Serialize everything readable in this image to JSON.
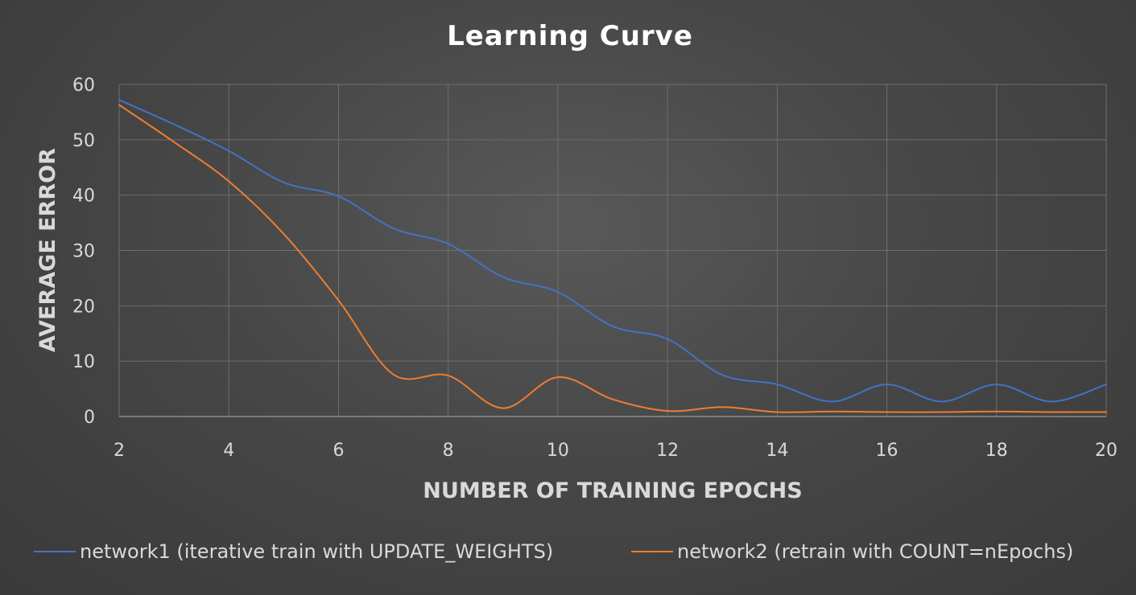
{
  "chart_data": {
    "type": "line",
    "title": "Learning Curve",
    "xlabel": "NUMBER OF TRAINING EPOCHS",
    "ylabel": "AVERAGE ERROR",
    "xlim": [
      2,
      20
    ],
    "ylim": [
      0,
      60
    ],
    "x_ticks": [
      2,
      4,
      6,
      8,
      10,
      12,
      14,
      16,
      18,
      20
    ],
    "y_ticks": [
      0,
      10,
      20,
      30,
      40,
      50,
      60
    ],
    "grid": true,
    "legend_position": "bottom",
    "x": [
      2,
      3,
      4,
      5,
      6,
      7,
      8,
      9,
      10,
      11,
      12,
      13,
      14,
      15,
      16,
      17,
      18,
      19,
      20
    ],
    "series": [
      {
        "name": "network1 (iterative train with UPDATE_WEIGHTS)",
        "color": "#4472c4",
        "values": [
          57.2,
          52.8,
          48.0,
          42.3,
          39.8,
          34.0,
          31.2,
          25.2,
          22.5,
          16.3,
          14.0,
          7.5,
          5.8,
          2.7,
          5.8,
          2.7,
          5.8,
          2.7,
          5.8
        ]
      },
      {
        "name": "network2 (retrain with COUNT=nEpochs)",
        "color": "#ed7d31",
        "values": [
          56.3,
          49.6,
          42.5,
          33.0,
          21.0,
          7.6,
          7.4,
          1.5,
          7.1,
          3.1,
          1.0,
          1.7,
          0.8,
          0.9,
          0.8,
          0.8,
          0.9,
          0.8,
          0.8
        ]
      }
    ]
  }
}
